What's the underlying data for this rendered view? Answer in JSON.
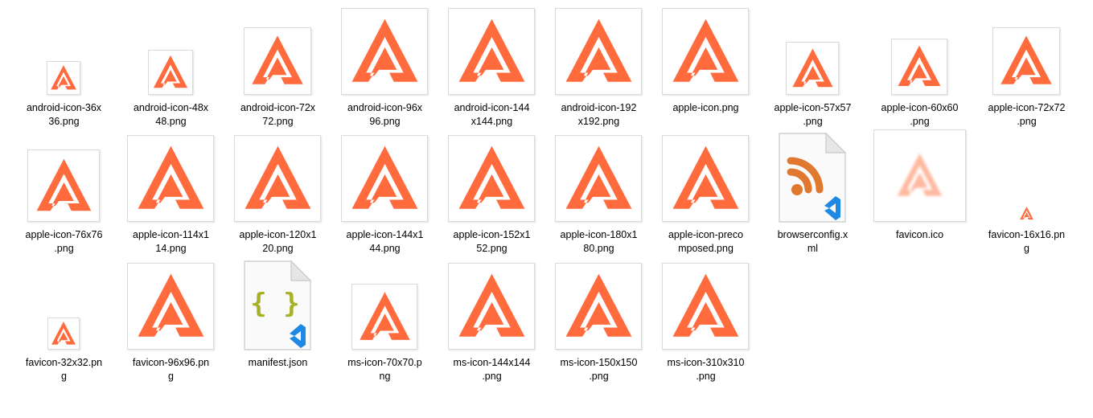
{
  "window": {
    "view": "Large icons"
  },
  "colors": {
    "brand": "#ff6b3d",
    "rss": "#e07830",
    "json_braces": "#a6b127",
    "vscode": "#1e88e5"
  },
  "files": [
    {
      "name": "android-icon-36x\n36.png",
      "icon": "logo-icon",
      "size": "36"
    },
    {
      "name": "android-icon-48x\n48.png",
      "icon": "logo-icon",
      "size": "48"
    },
    {
      "name": "android-icon-72x\n72.png",
      "icon": "logo-icon",
      "size": "72"
    },
    {
      "name": "android-icon-96x\n96.png",
      "icon": "logo-icon",
      "size": "96"
    },
    {
      "name": "android-icon-144\nx144.png",
      "icon": "logo-icon",
      "size": "144"
    },
    {
      "name": "android-icon-192\nx192.png",
      "icon": "logo-icon",
      "size": "192"
    },
    {
      "name": "apple-icon.png",
      "icon": "logo-icon",
      "size": "192"
    },
    {
      "name": "apple-icon-57x57\n.png",
      "icon": "logo-icon",
      "size": "57"
    },
    {
      "name": "apple-icon-60x60\n.png",
      "icon": "logo-icon",
      "size": "60"
    },
    {
      "name": "apple-icon-72x72\n.png",
      "icon": "logo-icon",
      "size": "72"
    },
    {
      "name": "apple-icon-76x76\n.png",
      "icon": "logo-icon",
      "size": "76"
    },
    {
      "name": "apple-icon-114x1\n14.png",
      "icon": "logo-icon",
      "size": "114"
    },
    {
      "name": "apple-icon-120x1\n20.png",
      "icon": "logo-icon",
      "size": "120"
    },
    {
      "name": "apple-icon-144x1\n44.png",
      "icon": "logo-icon",
      "size": "144"
    },
    {
      "name": "apple-icon-152x1\n52.png",
      "icon": "logo-icon",
      "size": "152"
    },
    {
      "name": "apple-icon-180x1\n80.png",
      "icon": "logo-icon",
      "size": "180"
    },
    {
      "name": "apple-icon-preco\nmposed.png",
      "icon": "logo-icon",
      "size": "192"
    },
    {
      "name": "browserconfig.x\nml",
      "icon": "rss-file-icon",
      "size": "doc"
    },
    {
      "name": "favicon.ico",
      "icon": "blurred-logo-icon",
      "size": "ico"
    },
    {
      "name": "favicon-16x16.pn\ng",
      "icon": "logo-icon",
      "size": "16"
    },
    {
      "name": "favicon-32x32.pn\ng",
      "icon": "logo-icon",
      "size": "32"
    },
    {
      "name": "favicon-96x96.pn\ng",
      "icon": "logo-icon",
      "size": "96"
    },
    {
      "name": "manifest.json",
      "icon": "json-file-icon",
      "size": "doc"
    },
    {
      "name": "ms-icon-70x70.p\nng",
      "icon": "logo-icon",
      "size": "70"
    },
    {
      "name": "ms-icon-144x144\n.png",
      "icon": "logo-icon",
      "size": "144"
    },
    {
      "name": "ms-icon-150x150\n.png",
      "icon": "logo-icon",
      "size": "150"
    },
    {
      "name": "ms-icon-310x310\n.png",
      "icon": "logo-icon",
      "size": "310"
    }
  ]
}
